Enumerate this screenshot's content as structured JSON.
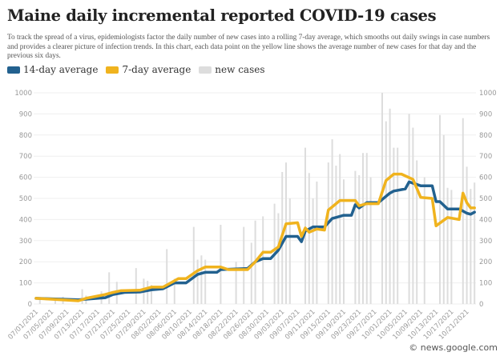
{
  "title": "Maine daily incremental reported COVID-19 cases",
  "description": "To track the spread of a virus, epidemiologists factor the daily number of new cases into a rolling 7-day average, which smooths out daily swings in case numbers and provides a clearer picture of infection trends. In this chart, each data point on the yellow line shows the average number of new cases for that day and the previous six days.",
  "credit": "© news.google.com",
  "chart_data": {
    "type": "bar+line",
    "title": "Maine daily incremental reported COVID-19 cases",
    "ylim": [
      0,
      1000
    ],
    "yticks": [
      "0",
      "100",
      "200",
      "300",
      "400",
      "500",
      "600",
      "700",
      "800",
      "900",
      "1000"
    ],
    "xlim": [
      "07/01/2021",
      "10/23/2021"
    ],
    "xticks": [
      "07/01/2021",
      "07/05/2021",
      "07/09/2021",
      "07/13/2021",
      "07/17/2021",
      "07/21/2021",
      "07/25/2021",
      "07/29/2021",
      "08/02/2021",
      "08/06/2021",
      "08/10/2021",
      "08/14/2021",
      "08/18/2021",
      "08/22/2021",
      "08/26/2021",
      "08/30/2021",
      "09/03/2021",
      "09/07/2021",
      "09/11/2021",
      "09/15/2021",
      "09/19/2021",
      "09/23/2021",
      "09/27/2021",
      "10/01/2021",
      "10/05/2021",
      "10/09/2021",
      "10/13/2021",
      "10/17/2021",
      "10/21/2021"
    ],
    "grid": true,
    "legend_position": "top-left",
    "colors": {
      "14-day average": "#22618f",
      "7-day average": "#f0b31e",
      "new cases": "#dddddd"
    },
    "series": [
      {
        "name": "14-day average",
        "type": "line",
        "points": [
          [
            "07/01/2021",
            27
          ],
          [
            "07/12/2021",
            20
          ],
          [
            "07/19/2021",
            30
          ],
          [
            "07/21/2021",
            45
          ],
          [
            "07/24/2021",
            55
          ],
          [
            "07/28/2021",
            57
          ],
          [
            "07/31/2021",
            67
          ],
          [
            "08/03/2021",
            72
          ],
          [
            "08/06/2021",
            100
          ],
          [
            "08/09/2021",
            100
          ],
          [
            "08/12/2021",
            140
          ],
          [
            "08/14/2021",
            150
          ],
          [
            "08/17/2021",
            150
          ],
          [
            "08/18/2021",
            163
          ],
          [
            "08/25/2021",
            168
          ],
          [
            "08/27/2021",
            200
          ],
          [
            "08/29/2021",
            215
          ],
          [
            "08/31/2021",
            215
          ],
          [
            "09/02/2021",
            255
          ],
          [
            "09/04/2021",
            320
          ],
          [
            "09/07/2021",
            320
          ],
          [
            "09/08/2021",
            295
          ],
          [
            "09/09/2021",
            345
          ],
          [
            "09/11/2021",
            365
          ],
          [
            "09/14/2021",
            365
          ],
          [
            "09/16/2021",
            405
          ],
          [
            "09/17/2021",
            410
          ],
          [
            "09/19/2021",
            420
          ],
          [
            "09/21/2021",
            420
          ],
          [
            "09/22/2021",
            470
          ],
          [
            "09/23/2021",
            455
          ],
          [
            "09/25/2021",
            480
          ],
          [
            "09/28/2021",
            480
          ],
          [
            "10/01/2021",
            525
          ],
          [
            "10/02/2021",
            535
          ],
          [
            "10/05/2021",
            545
          ],
          [
            "10/06/2021",
            578
          ],
          [
            "10/09/2021",
            560
          ],
          [
            "10/12/2021",
            560
          ],
          [
            "10/13/2021",
            485
          ],
          [
            "10/14/2021",
            485
          ],
          [
            "10/16/2021",
            450
          ],
          [
            "10/19/2021",
            450
          ],
          [
            "10/21/2021",
            430
          ],
          [
            "10/22/2021",
            425
          ],
          [
            "10/23/2021",
            435
          ]
        ]
      },
      {
        "name": "7-day average",
        "type": "line",
        "points": [
          [
            "07/01/2021",
            27
          ],
          [
            "07/12/2021",
            15
          ],
          [
            "07/14/2021",
            27
          ],
          [
            "07/19/2021",
            45
          ],
          [
            "07/21/2021",
            55
          ],
          [
            "07/23/2021",
            63
          ],
          [
            "07/28/2021",
            65
          ],
          [
            "07/31/2021",
            80
          ],
          [
            "08/03/2021",
            80
          ],
          [
            "08/05/2021",
            100
          ],
          [
            "08/07/2021",
            120
          ],
          [
            "08/09/2021",
            120
          ],
          [
            "08/12/2021",
            158
          ],
          [
            "08/14/2021",
            175
          ],
          [
            "08/18/2021",
            175
          ],
          [
            "08/20/2021",
            163
          ],
          [
            "08/25/2021",
            163
          ],
          [
            "08/27/2021",
            200
          ],
          [
            "08/29/2021",
            245
          ],
          [
            "08/31/2021",
            245
          ],
          [
            "09/02/2021",
            270
          ],
          [
            "09/04/2021",
            380
          ],
          [
            "09/07/2021",
            385
          ],
          [
            "09/08/2021",
            320
          ],
          [
            "09/09/2021",
            360
          ],
          [
            "09/10/2021",
            340
          ],
          [
            "09/12/2021",
            355
          ],
          [
            "09/14/2021",
            350
          ],
          [
            "09/15/2021",
            445
          ],
          [
            "09/16/2021",
            460
          ],
          [
            "09/18/2021",
            490
          ],
          [
            "09/22/2021",
            490
          ],
          [
            "09/23/2021",
            465
          ],
          [
            "09/25/2021",
            475
          ],
          [
            "09/28/2021",
            475
          ],
          [
            "09/30/2021",
            585
          ],
          [
            "10/02/2021",
            615
          ],
          [
            "10/04/2021",
            615
          ],
          [
            "10/07/2021",
            590
          ],
          [
            "10/09/2021",
            505
          ],
          [
            "10/12/2021",
            500
          ],
          [
            "10/13/2021",
            370
          ],
          [
            "10/16/2021",
            410
          ],
          [
            "10/19/2021",
            400
          ],
          [
            "10/20/2021",
            525
          ],
          [
            "10/21/2021",
            480
          ],
          [
            "10/22/2021",
            455
          ],
          [
            "10/23/2021",
            455
          ]
        ]
      },
      {
        "name": "new cases",
        "type": "bar",
        "points": [
          [
            "07/02/2021",
            30
          ],
          [
            "07/06/2021",
            25
          ],
          [
            "07/08/2021",
            35
          ],
          [
            "07/13/2021",
            70
          ],
          [
            "07/14/2021",
            40
          ],
          [
            "07/18/2021",
            60
          ],
          [
            "07/20/2021",
            150
          ],
          [
            "07/22/2021",
            105
          ],
          [
            "07/27/2021",
            170
          ],
          [
            "07/29/2021",
            120
          ],
          [
            "07/30/2021",
            110
          ],
          [
            "07/31/2021",
            90
          ],
          [
            "08/04/2021",
            260
          ],
          [
            "08/06/2021",
            120
          ],
          [
            "08/11/2021",
            365
          ],
          [
            "08/12/2021",
            210
          ],
          [
            "08/13/2021",
            230
          ],
          [
            "08/14/2021",
            210
          ],
          [
            "08/18/2021",
            375
          ],
          [
            "08/22/2021",
            200
          ],
          [
            "08/24/2021",
            365
          ],
          [
            "08/26/2021",
            290
          ],
          [
            "08/27/2021",
            395
          ],
          [
            "08/29/2021",
            415
          ],
          [
            "09/01/2021",
            475
          ],
          [
            "09/02/2021",
            430
          ],
          [
            "09/03/2021",
            625
          ],
          [
            "09/04/2021",
            670
          ],
          [
            "09/05/2021",
            500
          ],
          [
            "09/09/2021",
            740
          ],
          [
            "09/10/2021",
            620
          ],
          [
            "09/11/2021",
            500
          ],
          [
            "09/12/2021",
            580
          ],
          [
            "09/15/2021",
            670
          ],
          [
            "09/16/2021",
            780
          ],
          [
            "09/17/2021",
            655
          ],
          [
            "09/18/2021",
            710
          ],
          [
            "09/19/2021",
            590
          ],
          [
            "09/22/2021",
            630
          ],
          [
            "09/23/2021",
            610
          ],
          [
            "09/24/2021",
            715
          ],
          [
            "09/25/2021",
            715
          ],
          [
            "09/26/2021",
            600
          ],
          [
            "09/29/2021",
            1000
          ],
          [
            "09/30/2021",
            865
          ],
          [
            "10/01/2021",
            925
          ],
          [
            "10/02/2021",
            740
          ],
          [
            "10/03/2021",
            740
          ],
          [
            "10/06/2021",
            900
          ],
          [
            "10/07/2021",
            835
          ],
          [
            "10/08/2021",
            680
          ],
          [
            "10/10/2021",
            600
          ],
          [
            "10/14/2021",
            895
          ],
          [
            "10/15/2021",
            800
          ],
          [
            "10/16/2021",
            550
          ],
          [
            "10/17/2021",
            540
          ],
          [
            "10/20/2021",
            880
          ],
          [
            "10/21/2021",
            650
          ],
          [
            "10/22/2021",
            545
          ],
          [
            "10/23/2021",
            575
          ]
        ]
      }
    ]
  }
}
